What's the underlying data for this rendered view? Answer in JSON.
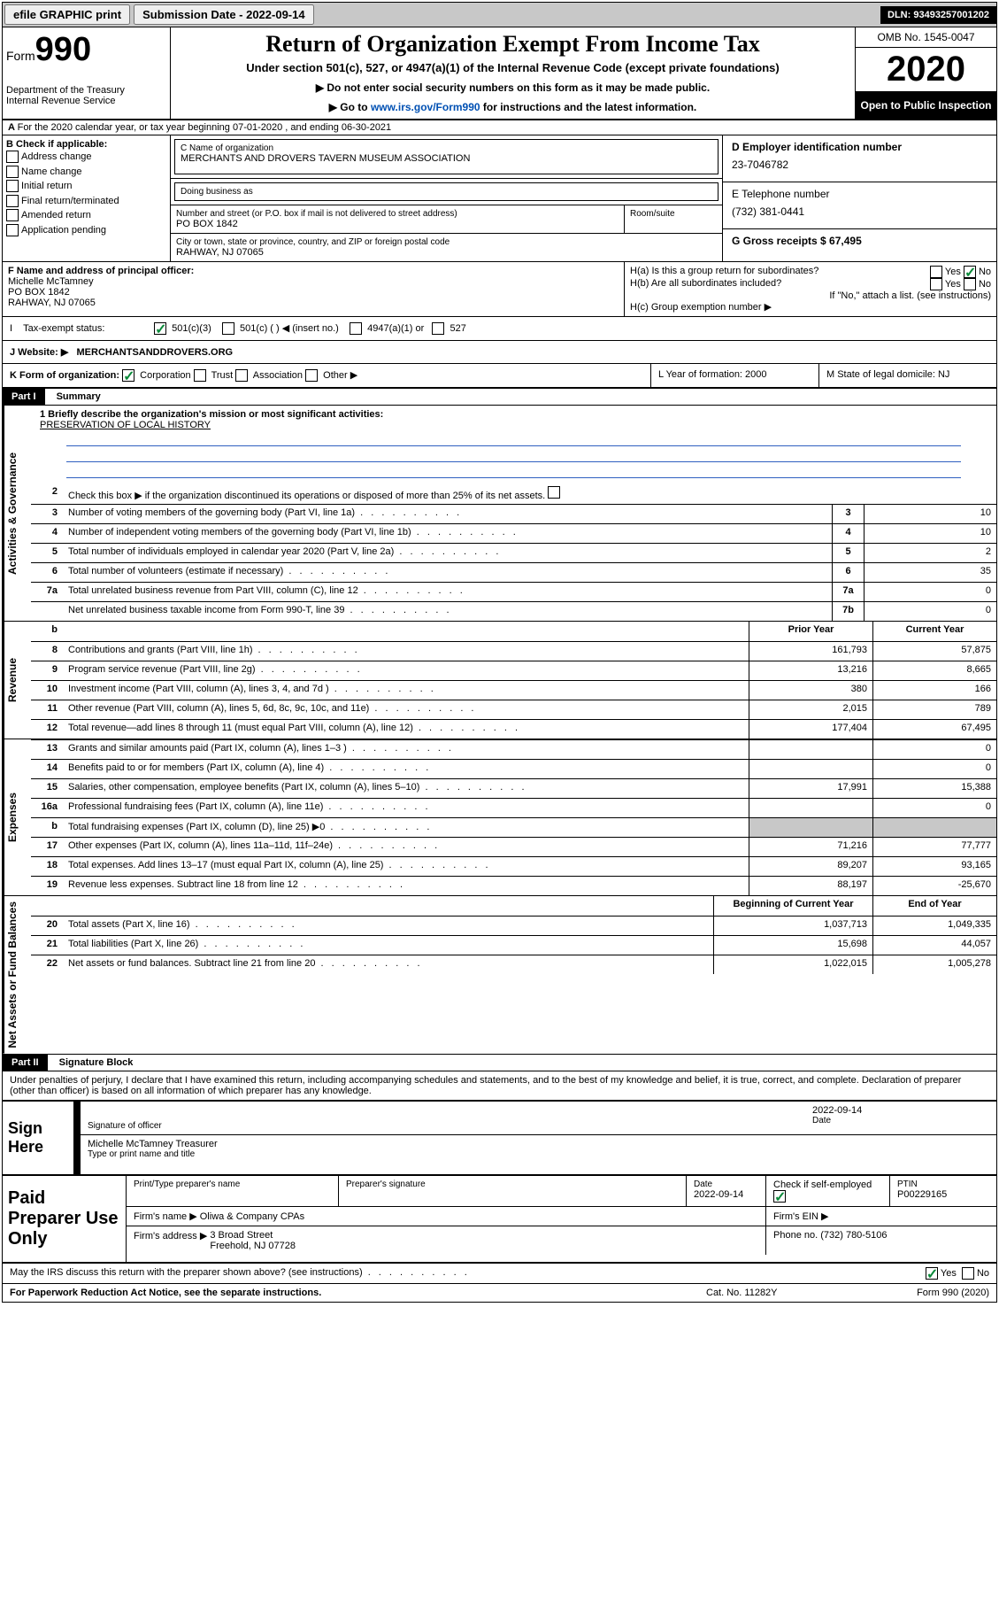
{
  "topbar": {
    "efile": "efile GRAPHIC print",
    "submission": "Submission Date - 2022-09-14",
    "dln": "DLN: 93493257001202"
  },
  "header": {
    "form_label": "Form",
    "form_num": "990",
    "dept": "Department of the Treasury\nInternal Revenue Service",
    "title": "Return of Organization Exempt From Income Tax",
    "subtitle": "Under section 501(c), 527, or 4947(a)(1) of the Internal Revenue Code (except private foundations)",
    "note1": "Do not enter social security numbers on this form as it may be made public.",
    "note2_pre": "Go to ",
    "note2_link": "www.irs.gov/Form990",
    "note2_post": " for instructions and the latest information.",
    "omb": "OMB No. 1545-0047",
    "year": "2020",
    "inspect": "Open to Public Inspection"
  },
  "rowA": "For the 2020 calendar year, or tax year beginning 07-01-2020     , and ending 06-30-2021",
  "colB": {
    "label": "B Check if applicable:",
    "opts": [
      "Address change",
      "Name change",
      "Initial return",
      "Final return/terminated",
      "Amended return",
      "Application pending"
    ]
  },
  "colC": {
    "name_label": "C Name of organization",
    "name": "MERCHANTS AND DROVERS TAVERN MUSEUM ASSOCIATION",
    "dba_label": "Doing business as",
    "street_label": "Number and street (or P.O. box if mail is not delivered to street address)",
    "street": "PO BOX 1842",
    "room_label": "Room/suite",
    "city_label": "City or town, state or province, country, and ZIP or foreign postal code",
    "city": "RAHWAY, NJ  07065"
  },
  "colD": {
    "ein_label": "D Employer identification number",
    "ein": "23-7046782",
    "phone_label": "E Telephone number",
    "phone": "(732) 381-0441",
    "gross_label": "G Gross receipts $ 67,495"
  },
  "rowF": {
    "label": "F  Name and address of principal officer:",
    "name": "Michelle McTamney",
    "addr1": "PO BOX 1842",
    "addr2": "RAHWAY, NJ  07065"
  },
  "rowH": {
    "ha": "H(a)  Is this a group return for subordinates?",
    "hb": "H(b)  Are all subordinates included?",
    "hb_note": "If \"No,\" attach a list. (see instructions)",
    "hc": "H(c)  Group exemption number ▶"
  },
  "exempt": {
    "label": "Tax-exempt status:",
    "o1": "501(c)(3)",
    "o2": "501(c) (   ) ◀ (insert no.)",
    "o3": "4947(a)(1) or",
    "o4": "527"
  },
  "website": {
    "label": "J   Website: ▶",
    "val": "MERCHANTSANDDROVERS.ORG"
  },
  "rowK": {
    "k": "K Form of organization:",
    "k_opts": [
      "Corporation",
      "Trust",
      "Association",
      "Other ▶"
    ],
    "l": "L Year of formation: 2000",
    "m": "M State of legal domicile: NJ"
  },
  "part1": {
    "hdr": "Part I",
    "title": "Summary"
  },
  "mission_q": "1   Briefly describe the organization's mission or most significant activities:",
  "mission": "PRESERVATION OF LOCAL HISTORY",
  "gov": {
    "q2": "Check this box ▶      if the organization discontinued its operations or disposed of more than 25% of its net assets.",
    "rows": [
      {
        "n": "3",
        "t": "Number of voting members of the governing body (Part VI, line 1a)",
        "b": "3",
        "v": "10"
      },
      {
        "n": "4",
        "t": "Number of independent voting members of the governing body (Part VI, line 1b)",
        "b": "4",
        "v": "10"
      },
      {
        "n": "5",
        "t": "Total number of individuals employed in calendar year 2020 (Part V, line 2a)",
        "b": "5",
        "v": "2"
      },
      {
        "n": "6",
        "t": "Total number of volunteers (estimate if necessary)",
        "b": "6",
        "v": "35"
      },
      {
        "n": "7a",
        "t": "Total unrelated business revenue from Part VIII, column (C), line 12",
        "b": "7a",
        "v": "0"
      },
      {
        "n": "",
        "t": "Net unrelated business taxable income from Form 990-T, line 39",
        "b": "7b",
        "v": "0"
      }
    ]
  },
  "vlabels": {
    "gov": "Activities & Governance",
    "rev": "Revenue",
    "exp": "Expenses",
    "net": "Net Assets or Fund Balances"
  },
  "colhdrs": {
    "prior": "Prior Year",
    "current": "Current Year",
    "beg": "Beginning of Current Year",
    "end": "End of Year"
  },
  "rev": [
    {
      "n": "8",
      "t": "Contributions and grants (Part VIII, line 1h)",
      "p": "161,793",
      "c": "57,875"
    },
    {
      "n": "9",
      "t": "Program service revenue (Part VIII, line 2g)",
      "p": "13,216",
      "c": "8,665"
    },
    {
      "n": "10",
      "t": "Investment income (Part VIII, column (A), lines 3, 4, and 7d )",
      "p": "380",
      "c": "166"
    },
    {
      "n": "11",
      "t": "Other revenue (Part VIII, column (A), lines 5, 6d, 8c, 9c, 10c, and 11e)",
      "p": "2,015",
      "c": "789"
    },
    {
      "n": "12",
      "t": "Total revenue—add lines 8 through 11 (must equal Part VIII, column (A), line 12)",
      "p": "177,404",
      "c": "67,495"
    }
  ],
  "exp": [
    {
      "n": "13",
      "t": "Grants and similar amounts paid (Part IX, column (A), lines 1–3 )",
      "p": "",
      "c": "0"
    },
    {
      "n": "14",
      "t": "Benefits paid to or for members (Part IX, column (A), line 4)",
      "p": "",
      "c": "0"
    },
    {
      "n": "15",
      "t": "Salaries, other compensation, employee benefits (Part IX, column (A), lines 5–10)",
      "p": "17,991",
      "c": "15,388"
    },
    {
      "n": "16a",
      "t": "Professional fundraising fees (Part IX, column (A), line 11e)",
      "p": "",
      "c": "0"
    },
    {
      "n": "b",
      "t": "Total fundraising expenses (Part IX, column (D), line 25) ▶0",
      "p": "GREY",
      "c": "GREY"
    },
    {
      "n": "17",
      "t": "Other expenses (Part IX, column (A), lines 11a–11d, 11f–24e)",
      "p": "71,216",
      "c": "77,777"
    },
    {
      "n": "18",
      "t": "Total expenses. Add lines 13–17 (must equal Part IX, column (A), line 25)",
      "p": "89,207",
      "c": "93,165"
    },
    {
      "n": "19",
      "t": "Revenue less expenses. Subtract line 18 from line 12",
      "p": "88,197",
      "c": "-25,670"
    }
  ],
  "net": [
    {
      "n": "20",
      "t": "Total assets (Part X, line 16)",
      "p": "1,037,713",
      "c": "1,049,335"
    },
    {
      "n": "21",
      "t": "Total liabilities (Part X, line 26)",
      "p": "15,698",
      "c": "44,057"
    },
    {
      "n": "22",
      "t": "Net assets or fund balances. Subtract line 21 from line 20",
      "p": "1,022,015",
      "c": "1,005,278"
    }
  ],
  "part2": {
    "hdr": "Part II",
    "title": "Signature Block"
  },
  "perjury": "Under penalties of perjury, I declare that I have examined this return, including accompanying schedules and statements, and to the best of my knowledge and belief, it is true, correct, and complete. Declaration of preparer (other than officer) is based on all information of which preparer has any knowledge.",
  "sign": {
    "label": "Sign Here",
    "sig_of": "Signature of officer",
    "date": "2022-09-14",
    "date_label": "Date",
    "name": "Michelle McTamney  Treasurer",
    "name_label": "Type or print name and title"
  },
  "prep": {
    "label": "Paid Preparer Use Only",
    "h1": "Print/Type preparer's name",
    "h2": "Preparer's signature",
    "h3": "Date",
    "h3v": "2022-09-14",
    "h4": "Check        if self-employed",
    "h5": "PTIN",
    "h5v": "P00229165",
    "firm_name_l": "Firm's name      ▶",
    "firm_name": "Oliwa & Company CPAs",
    "firm_ein_l": "Firm's EIN ▶",
    "firm_addr_l": "Firm's address ▶",
    "firm_addr": "3 Broad Street\nFreehold, NJ  07728",
    "firm_phone_l": "Phone no. (732) 780-5106"
  },
  "discuss": "May the IRS discuss this return with the preparer shown above? (see instructions)",
  "footer": {
    "pra": "For Paperwork Reduction Act Notice, see the separate instructions.",
    "cat": "Cat. No. 11282Y",
    "form": "Form 990 (2020)"
  }
}
